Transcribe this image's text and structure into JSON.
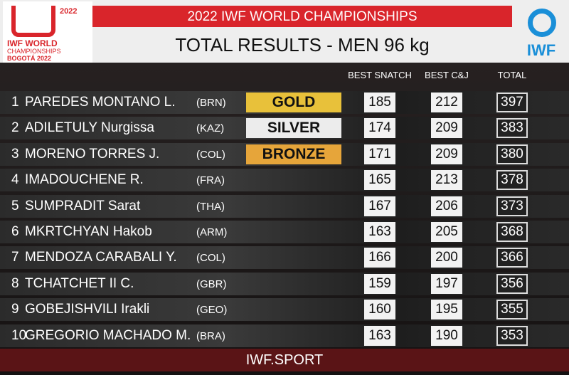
{
  "header": {
    "logo": {
      "year": "2022",
      "line1": "IWF WORLD",
      "line2": "CHAMPIONSHIPS",
      "line3": "BOGOTÁ 2022"
    },
    "title": "2022 IWF WORLD CHAMPIONSHIPS",
    "subtitle": "TOTAL RESULTS - MEN 96 kg",
    "brand": "IWF"
  },
  "table": {
    "columns": [
      "BEST SNATCH",
      "BEST C&J",
      "TOTAL"
    ],
    "rows": [
      {
        "rank": "1",
        "name": "PAREDES MONTANO L.",
        "country": "(BRN)",
        "medal": "GOLD",
        "snatch": "185",
        "cj": "212",
        "total": "397"
      },
      {
        "rank": "2",
        "name": "ADILETULY Nurgissa",
        "country": "(KAZ)",
        "medal": "SILVER",
        "snatch": "174",
        "cj": "209",
        "total": "383"
      },
      {
        "rank": "3",
        "name": "MORENO TORRES J.",
        "country": "(COL)",
        "medal": "BRONZE",
        "snatch": "171",
        "cj": "209",
        "total": "380"
      },
      {
        "rank": "4",
        "name": "IMADOUCHENE R.",
        "country": "(FRA)",
        "snatch": "165",
        "cj": "213",
        "total": "378"
      },
      {
        "rank": "5",
        "name": "SUMPRADIT Sarat",
        "country": "(THA)",
        "snatch": "167",
        "cj": "206",
        "total": "373"
      },
      {
        "rank": "6",
        "name": "MKRTCHYAN Hakob",
        "country": "(ARM)",
        "snatch": "163",
        "cj": "205",
        "total": "368"
      },
      {
        "rank": "7",
        "name": "MENDOZA CARABALI Y.",
        "country": "(COL)",
        "snatch": "166",
        "cj": "200",
        "total": "366"
      },
      {
        "rank": "8",
        "name": "TCHATCHET II C.",
        "country": "(GBR)",
        "snatch": "159",
        "cj": "197",
        "total": "356"
      },
      {
        "rank": "9",
        "name": "GOBEJISHVILI Irakli",
        "country": "(GEO)",
        "snatch": "160",
        "cj": "195",
        "total": "355"
      },
      {
        "rank": "10",
        "name": "GREGORIO MACHADO M.",
        "country": "(BRA)",
        "snatch": "163",
        "cj": "190",
        "total": "353"
      }
    ]
  },
  "footer": "IWF.SPORT"
}
